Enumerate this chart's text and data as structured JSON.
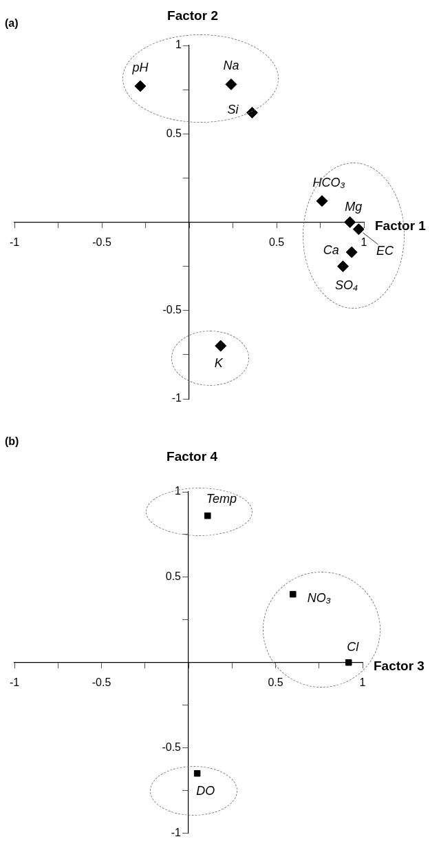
{
  "chart_data": [
    {
      "type": "scatter",
      "title": "(a)",
      "xlabel": "Factor 1",
      "ylabel": "Factor 2",
      "marker": "diamond",
      "grid": false,
      "legend": false,
      "series": [
        {
          "color": "#000000",
          "x": [
            -0.28,
            0.24,
            0.36,
            0.76,
            0.92,
            0.97,
            0.93,
            0.88,
            0.18
          ],
          "values": [
            0.77,
            0.78,
            0.62,
            0.12,
            0.0,
            -0.04,
            -0.17,
            -0.25,
            -0.7
          ]
        }
      ],
      "xlim": [
        -1,
        1
      ],
      "ylim": [
        -1,
        1
      ],
      "xticks": [
        -1,
        {
          "value": -0.75,
          "label": null
        },
        -0.5,
        {
          "value": -0.25,
          "label": null
        },
        {
          "value": 0,
          "label": null
        },
        {
          "value": 0.25,
          "label": null
        },
        0.5,
        {
          "value": 0.75,
          "label": null
        },
        1
      ],
      "yticks": [
        -1,
        {
          "value": -0.75,
          "label": null
        },
        -0.5,
        {
          "value": -0.25,
          "label": null
        },
        {
          "value": 0,
          "label": null
        },
        {
          "value": 0.25,
          "label": null
        },
        0.5,
        {
          "value": 0.75,
          "label": null
        },
        1
      ],
      "annotations": [
        {
          "text": "pH",
          "x": -0.28,
          "y": 0.77
        },
        {
          "text": "Na",
          "x": 0.24,
          "y": 0.78
        },
        {
          "text": "Si",
          "x": 0.36,
          "y": 0.62
        },
        {
          "text": "HCO₃",
          "x": 0.76,
          "y": 0.12
        },
        {
          "text": "Mg",
          "x": 0.92,
          "y": 0.0
        },
        {
          "text": "EC",
          "x": 0.97,
          "y": -0.04
        },
        {
          "text": "Ca",
          "x": 0.93,
          "y": -0.17
        },
        {
          "text": "SO₄",
          "x": 0.88,
          "y": -0.25
        },
        {
          "text": "K",
          "x": 0.18,
          "y": -0.7
        }
      ]
    },
    {
      "type": "scatter",
      "title": "(b)",
      "xlabel": "Factor 3",
      "ylabel": "Factor 4",
      "marker": "square",
      "grid": false,
      "legend": false,
      "series": [
        {
          "color": "#000000",
          "x": [
            0.11,
            0.6,
            0.92,
            0.05
          ],
          "values": [
            0.86,
            0.4,
            0.0,
            -0.65
          ]
        }
      ],
      "xlim": [
        -1,
        1
      ],
      "ylim": [
        -1,
        1
      ],
      "xticks": [
        -1,
        {
          "value": -0.75,
          "label": null
        },
        -0.5,
        {
          "value": -0.25,
          "label": null
        },
        {
          "value": 0,
          "label": null
        },
        {
          "value": 0.25,
          "label": null
        },
        0.5,
        {
          "value": 0.75,
          "label": null
        },
        1
      ],
      "yticks": [
        -1,
        {
          "value": -0.75,
          "label": null
        },
        -0.5,
        {
          "value": -0.25,
          "label": null
        },
        {
          "value": 0,
          "label": null
        },
        {
          "value": 0.25,
          "label": null
        },
        0.5,
        {
          "value": 0.75,
          "label": null
        },
        1
      ],
      "annotations": [
        {
          "text": "Temp",
          "x": 0.11,
          "y": 0.86
        },
        {
          "text": "NO₃",
          "x": 0.6,
          "y": 0.4
        },
        {
          "text": "Cl",
          "x": 0.92,
          "y": 0.0
        },
        {
          "text": "DO",
          "x": 0.05,
          "y": -0.65
        }
      ]
    }
  ]
}
